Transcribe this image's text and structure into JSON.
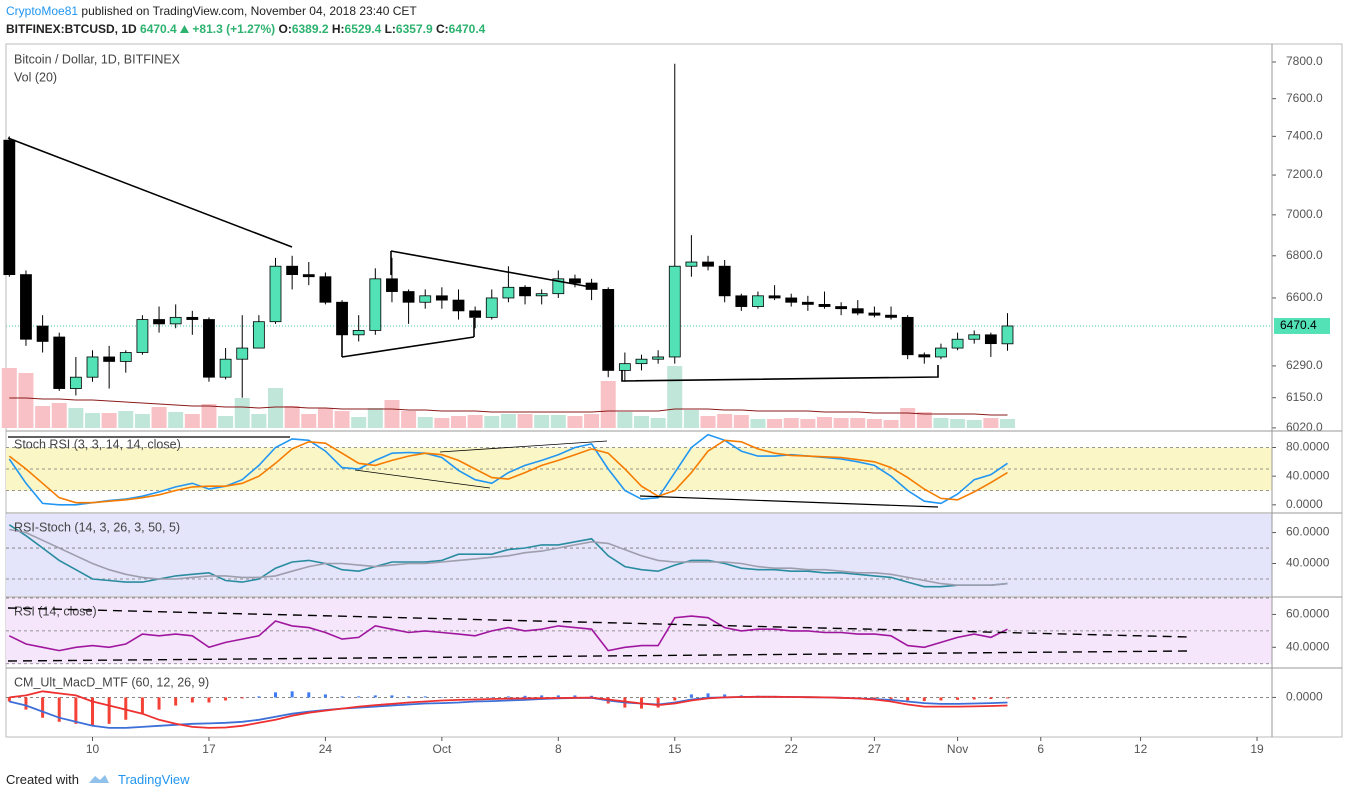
{
  "header": {
    "author": "CryptoMoe81",
    "published": "published on TradingView.com, November 04, 2018 23:40 CET",
    "symbol": "BITFINEX:BTCUSD, 1D",
    "last": 6470.4,
    "change": "+81.3 (+1.27%)",
    "ohlc": [
      {
        "label": "O:",
        "value": 6389.2
      },
      {
        "label": "H:",
        "value": 6529.4
      },
      {
        "label": "L:",
        "value": 6357.9
      },
      {
        "label": "C:",
        "value": 6470.4
      }
    ]
  },
  "footer": {
    "created": "Created with",
    "brand": "TradingView"
  },
  "chart_data": [
    {
      "type": "candlestick",
      "title": "Bitcoin / Dollar, 1D, BITFINEX",
      "up_color": "#53e2b6",
      "down_color": "#000000",
      "log": true,
      "grid": false,
      "last_price": 6470.4,
      "x": [
        0,
        1,
        2,
        3,
        4,
        5,
        6,
        7,
        8,
        9,
        10,
        11,
        12,
        13,
        14,
        15,
        16,
        17,
        18,
        19,
        20,
        21,
        22,
        23,
        24,
        25,
        26,
        27,
        28,
        29,
        30,
        31,
        32,
        33,
        34,
        35,
        36,
        37,
        38,
        39,
        40,
        41,
        42,
        43,
        44,
        45,
        46,
        47,
        48,
        49,
        50,
        51,
        52,
        53,
        54,
        55,
        56,
        57,
        58,
        59,
        60
      ],
      "open": [
        7380,
        6710,
        6470,
        6420,
        6190,
        6240,
        6330,
        6310,
        6350,
        6500,
        6480,
        6510,
        6500,
        6240,
        6320,
        6370,
        6490,
        6750,
        6710,
        6700,
        6580,
        6430,
        6450,
        6690,
        6630,
        6580,
        6610,
        6590,
        6540,
        6510,
        6600,
        6650,
        6610,
        6620,
        6690,
        6670,
        6640,
        6270,
        6300,
        6320,
        6330,
        6750,
        6770,
        6750,
        6610,
        6560,
        6610,
        6600,
        6580,
        6570,
        6560,
        6550,
        6530,
        6520,
        6510,
        6340,
        6330,
        6370,
        6410,
        6430,
        6389.2
      ],
      "high": [
        7400,
        6730,
        6520,
        6440,
        6330,
        6360,
        6380,
        6360,
        6520,
        6560,
        6570,
        6540,
        6510,
        6370,
        6520,
        6520,
        6790,
        6800,
        6770,
        6720,
        6590,
        6520,
        6740,
        6790,
        6640,
        6640,
        6650,
        6640,
        6560,
        6640,
        6750,
        6660,
        6640,
        6730,
        6710,
        6690,
        6650,
        6350,
        6340,
        6360,
        7790,
        6900,
        6800,
        6780,
        6620,
        6630,
        6660,
        6620,
        6610,
        6630,
        6580,
        6590,
        6560,
        6560,
        6520,
        6350,
        6390,
        6440,
        6450,
        6440,
        6529.4
      ],
      "low": [
        6700,
        6380,
        6350,
        6180,
        6160,
        6220,
        6190,
        6260,
        6340,
        6440,
        6460,
        6430,
        6220,
        6230,
        6150,
        6370,
        6480,
        6640,
        6660,
        6570,
        6410,
        6400,
        6430,
        6580,
        6480,
        6550,
        6550,
        6500,
        6460,
        6500,
        6580,
        6570,
        6570,
        6600,
        6650,
        6590,
        6240,
        6220,
        6270,
        6300,
        6300,
        6700,
        6730,
        6580,
        6540,
        6550,
        6590,
        6560,
        6540,
        6550,
        6520,
        6520,
        6510,
        6500,
        6320,
        6300,
        6320,
        6360,
        6390,
        6330,
        6357.9
      ],
      "close": [
        6710,
        6410,
        6400,
        6190,
        6240,
        6330,
        6310,
        6350,
        6500,
        6480,
        6510,
        6500,
        6240,
        6320,
        6370,
        6490,
        6750,
        6710,
        6700,
        6580,
        6430,
        6450,
        6690,
        6630,
        6580,
        6610,
        6590,
        6540,
        6510,
        6600,
        6650,
        6610,
        6620,
        6690,
        6670,
        6640,
        6270,
        6300,
        6320,
        6330,
        6750,
        6770,
        6750,
        6610,
        6560,
        6610,
        6600,
        6580,
        6570,
        6560,
        6550,
        6530,
        6520,
        6510,
        6340,
        6330,
        6370,
        6410,
        6430,
        6390,
        6470.4
      ],
      "ylim": [
        6011,
        7900
      ],
      "yticks": [
        {
          "value": 6020,
          "label": "6020.0"
        },
        {
          "value": 6150,
          "label": "6150.0"
        },
        {
          "value": 6290,
          "label": "6290.0"
        },
        {
          "value": 6600,
          "label": "6600.0"
        },
        {
          "value": 6800,
          "label": "6800.0"
        },
        {
          "value": 7000,
          "label": "7000.0"
        },
        {
          "value": 7200,
          "label": "7200.0"
        },
        {
          "value": 7400,
          "label": "7400.0"
        },
        {
          "value": 7600,
          "label": "7600.0"
        },
        {
          "value": 7800,
          "label": "7800.0"
        }
      ],
      "xlim": [
        -0.2,
        75.9
      ],
      "xticks": [
        {
          "value": 5,
          "label": "10"
        },
        {
          "value": 12,
          "label": "17"
        },
        {
          "value": 19,
          "label": "24"
        },
        {
          "value": 26,
          "label": "Oct"
        },
        {
          "value": 33,
          "label": "8"
        },
        {
          "value": 40,
          "label": "15"
        },
        {
          "value": 47,
          "label": "22"
        },
        {
          "value": 52,
          "label": "27"
        },
        {
          "value": 57,
          "label": "Nov"
        },
        {
          "value": 62,
          "label": "6"
        },
        {
          "value": 68,
          "label": "12"
        },
        {
          "value": 75,
          "label": "19"
        }
      ]
    },
    {
      "type": "volume",
      "title": "Vol (20)",
      "up_color": "#bfe6d8",
      "down_color": "#f7c1c6",
      "ma_color": "#8b1a1a",
      "values": [
        60,
        55,
        22,
        25,
        20,
        15,
        15,
        17,
        14,
        21,
        16,
        14,
        24,
        12,
        30,
        14,
        40,
        22,
        14,
        20,
        17,
        11,
        20,
        28,
        17,
        11,
        10,
        12,
        13,
        12,
        14,
        14,
        13,
        13,
        12,
        14,
        47,
        16,
        12,
        10,
        62,
        18,
        12,
        14,
        13,
        9,
        9,
        10,
        9,
        11,
        10,
        10,
        9,
        8,
        20,
        16,
        10,
        9,
        8,
        10,
        9
      ],
      "ma": [
        30,
        30,
        29,
        29,
        28,
        28,
        27,
        26,
        25,
        24,
        23,
        22,
        22,
        21,
        21,
        20,
        21,
        21,
        20,
        20,
        19,
        19,
        19,
        19,
        18,
        18,
        17,
        17,
        17,
        16,
        16,
        16,
        16,
        16,
        16,
        16,
        17,
        17,
        17,
        17,
        19,
        19,
        19,
        18,
        18,
        17,
        17,
        17,
        17,
        16,
        16,
        16,
        15,
        15,
        15,
        14,
        14,
        14,
        14,
        13,
        13
      ]
    },
    {
      "type": "line",
      "title": "Stoch RSI (3, 3, 14, 14, close)",
      "ylim": [
        -10,
        103
      ],
      "band": [
        20,
        80
      ],
      "band_color": "#fbf6c6",
      "hlines": [
        20,
        50,
        80
      ],
      "yticks": [
        {
          "value": 0,
          "label": "0.0000"
        },
        {
          "value": 40,
          "label": "40.0000"
        },
        {
          "value": 80,
          "label": "80.0000"
        }
      ],
      "series": [
        {
          "color": "#2196f3",
          "values": [
            64,
            30,
            2,
            0,
            0,
            3,
            6,
            8,
            12,
            18,
            25,
            30,
            22,
            26,
            35,
            55,
            80,
            92,
            90,
            75,
            52,
            50,
            62,
            72,
            73,
            72,
            66,
            48,
            35,
            30,
            45,
            55,
            62,
            70,
            80,
            85,
            50,
            20,
            8,
            10,
            45,
            80,
            98,
            90,
            75,
            68,
            68,
            70,
            68,
            66,
            64,
            60,
            55,
            40,
            20,
            5,
            2,
            15,
            35,
            42,
            58
          ]
        },
        {
          "color": "#f57c00",
          "values": [
            68,
            50,
            30,
            10,
            3,
            3,
            5,
            7,
            10,
            14,
            20,
            25,
            26,
            26,
            30,
            40,
            58,
            78,
            88,
            86,
            72,
            58,
            55,
            62,
            68,
            72,
            70,
            62,
            50,
            38,
            36,
            45,
            55,
            62,
            70,
            78,
            72,
            50,
            26,
            12,
            20,
            45,
            75,
            90,
            88,
            78,
            72,
            69,
            68,
            67,
            66,
            63,
            60,
            52,
            38,
            22,
            9,
            7,
            18,
            31,
            45
          ]
        }
      ]
    },
    {
      "type": "line",
      "title": "RSI-Stoch (14, 3, 26, 3, 50, 5)",
      "ylim": [
        19,
        72
      ],
      "band": [
        19,
        72
      ],
      "band_color": "#e4e4fa",
      "hlines": [
        30,
        50
      ],
      "yticks": [
        {
          "value": 40,
          "label": "40.0000"
        },
        {
          "value": 60,
          "label": "60.0000"
        }
      ],
      "series": [
        {
          "color": "#2a8ca0",
          "values": [
            65,
            58,
            50,
            42,
            36,
            30,
            29,
            28,
            28,
            30,
            32,
            33,
            34,
            29,
            28,
            30,
            37,
            41,
            42,
            40,
            36,
            35,
            38,
            41,
            41,
            41,
            42,
            46,
            46,
            46,
            49,
            50,
            52,
            52,
            54,
            56,
            45,
            38,
            36,
            35,
            39,
            42,
            42,
            40,
            37,
            36,
            36,
            35,
            35,
            34,
            34,
            33,
            32,
            31,
            28,
            25,
            25,
            26,
            26,
            26,
            27
          ]
        },
        {
          "color": "#9e9eae",
          "values": [
            62,
            60,
            55,
            50,
            45,
            40,
            36,
            33,
            31,
            30,
            30,
            31,
            32,
            32,
            31,
            31,
            32,
            35,
            38,
            40,
            40,
            39,
            38,
            39,
            40,
            40,
            41,
            42,
            43,
            44,
            45,
            47,
            48,
            50,
            52,
            54,
            53,
            49,
            45,
            42,
            41,
            41,
            41,
            41,
            40,
            38,
            37,
            37,
            36,
            36,
            35,
            34,
            34,
            33,
            31,
            29,
            27,
            26,
            26,
            26,
            27
          ]
        }
      ]
    },
    {
      "type": "line",
      "title": "RSI (14, close)",
      "ylim": [
        28,
        70
      ],
      "band": [
        30,
        70
      ],
      "band_color": "#f5e6fb",
      "hlines": [
        30,
        50,
        70
      ],
      "yticks": [
        {
          "value": 40,
          "label": "40.0000"
        },
        {
          "value": 60,
          "label": "60.0000"
        }
      ],
      "series": [
        {
          "color": "#a0179f",
          "values": [
            47,
            42,
            40,
            38,
            40,
            41,
            40,
            42,
            48,
            47,
            48,
            47,
            40,
            43,
            45,
            47,
            56,
            53,
            52,
            49,
            45,
            46,
            53,
            51,
            49,
            50,
            49,
            48,
            47,
            50,
            52,
            50,
            51,
            53,
            52,
            51,
            38,
            40,
            41,
            41,
            58,
            59,
            58,
            52,
            50,
            51,
            51,
            50,
            50,
            49,
            49,
            48,
            48,
            47,
            41,
            40,
            43,
            46,
            48,
            46,
            51
          ]
        }
      ]
    },
    {
      "type": "macd",
      "title": "CM_Ult_MacD_MTF (60, 12, 26, 9)",
      "ylim": [
        -190,
        140
      ],
      "hlines": [
        0
      ],
      "pos_color": "#3f7bf5",
      "neg_color": "#f44336",
      "yticks": [
        {
          "value": 0,
          "label": "0.0000"
        }
      ],
      "values": [
        -20,
        -60,
        -100,
        -120,
        -130,
        -140,
        -130,
        -110,
        -80,
        -60,
        -40,
        -25,
        -25,
        -15,
        -5,
        5,
        25,
        30,
        25,
        15,
        5,
        5,
        10,
        10,
        5,
        5,
        2,
        -2,
        -2,
        2,
        5,
        8,
        10,
        10,
        10,
        8,
        -30,
        -50,
        -55,
        -50,
        -15,
        15,
        20,
        15,
        10,
        8,
        6,
        4,
        2,
        0,
        -5,
        -8,
        -10,
        -12,
        -15,
        -18,
        -15,
        -12,
        -10,
        -8,
        -5
      ],
      "series": [
        {
          "color": "#3d6fd8",
          "values": [
            -20,
            -40,
            -70,
            -100,
            -120,
            -140,
            -150,
            -150,
            -145,
            -140,
            -135,
            -130,
            -128,
            -125,
            -120,
            -110,
            -95,
            -80,
            -70,
            -62,
            -55,
            -50,
            -45,
            -40,
            -35,
            -30,
            -28,
            -25,
            -20,
            -18,
            -15,
            -12,
            -8,
            -5,
            -3,
            -2,
            -15,
            -25,
            -30,
            -35,
            -25,
            -10,
            -2,
            0,
            2,
            3,
            3,
            2,
            1,
            0,
            -2,
            -5,
            -8,
            -12,
            -20,
            -28,
            -32,
            -32,
            -30,
            -28,
            -25
          ]
        },
        {
          "color": "#ee3030",
          "values": [
            0,
            10,
            30,
            20,
            10,
            -20,
            -40,
            -60,
            -80,
            -110,
            -130,
            -145,
            -150,
            -148,
            -140,
            -125,
            -110,
            -90,
            -75,
            -65,
            -55,
            -45,
            -38,
            -32,
            -25,
            -20,
            -15,
            -12,
            -10,
            -8,
            -6,
            -5,
            -4,
            -3,
            -2,
            -1,
            -10,
            -20,
            -30,
            -38,
            -30,
            -15,
            -5,
            0,
            2,
            3,
            3,
            2,
            1,
            0,
            -2,
            -5,
            -10,
            -20,
            -35,
            -45,
            -45,
            -45,
            -44,
            -42,
            -40
          ]
        }
      ]
    }
  ]
}
